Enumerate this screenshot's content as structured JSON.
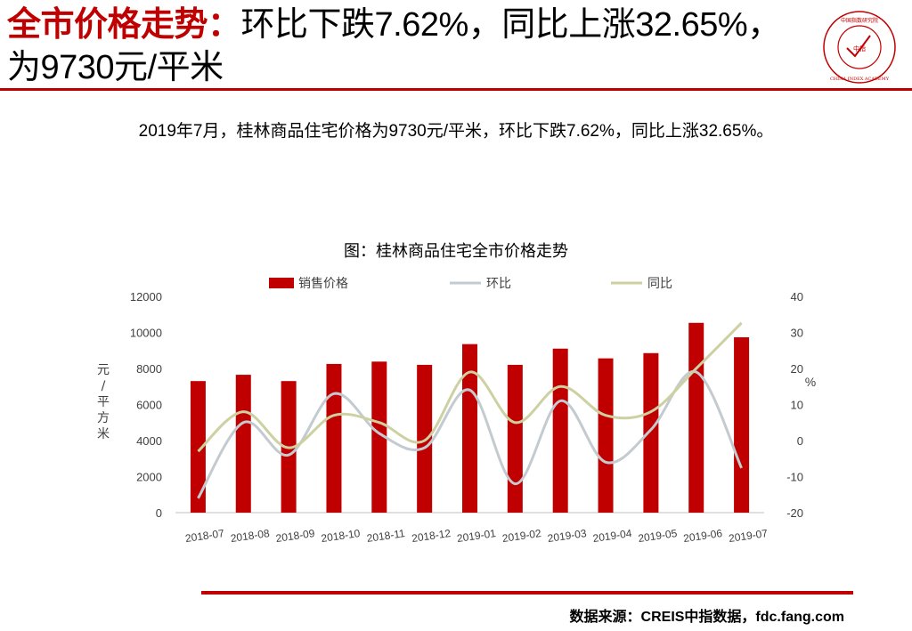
{
  "header": {
    "title_red": "全市价格走势：",
    "title_rest": "环比下跌7.62%，同比上涨32.65%，为9730元/平米",
    "logo_text_top": "中国指数研究院",
    "logo_text_center": "中指",
    "logo_text_bottom": "CHINA INDEX ACADEMY"
  },
  "description": "2019年7月，桂林商品住宅价格为9730元/平米，环比下跌7.62%，同比上涨32.65%。",
  "footer": {
    "source": "数据来源：CREIS中指数据，fdc.fang.com"
  },
  "colors": {
    "accent": "#c00000",
    "bar": "#c00000",
    "mom": "#c3cbd0",
    "yoy": "#cdd0a1"
  },
  "chart_data": {
    "type": "bar",
    "title": "图：桂林商品住宅全市价格走势",
    "categories": [
      "2018-07",
      "2018-08",
      "2018-09",
      "2018-10",
      "2018-11",
      "2018-12",
      "2019-01",
      "2019-02",
      "2019-03",
      "2019-04",
      "2019-05",
      "2019-06",
      "2019-07"
    ],
    "series": [
      {
        "name": "销售价格",
        "type": "bar",
        "axis": "left",
        "values": [
          7300,
          7650,
          7300,
          8250,
          8380,
          8200,
          9350,
          8200,
          9100,
          8560,
          8850,
          10530,
          9730
        ]
      },
      {
        "name": "环比",
        "type": "line",
        "axis": "right",
        "values": [
          -16,
          5,
          -4,
          13,
          2,
          -2,
          14,
          -12,
          11,
          -6,
          3,
          19,
          -7.62
        ]
      },
      {
        "name": "同比",
        "type": "line",
        "axis": "right",
        "values": [
          -3,
          8,
          -2,
          7,
          5,
          0,
          19,
          5,
          15,
          7,
          8,
          20,
          32.65
        ]
      }
    ],
    "ylabel": "元/平方米",
    "y2label": "%",
    "ylim": [
      0,
      12000
    ],
    "y2lim": [
      -20,
      40
    ],
    "yticks": [
      "0",
      "2000",
      "4000",
      "6000",
      "8000",
      "10000",
      "12000"
    ],
    "y2ticks": [
      "-20",
      "-10",
      "0",
      "10",
      "20",
      "30",
      "40"
    ],
    "legend": "top",
    "grid": false
  }
}
